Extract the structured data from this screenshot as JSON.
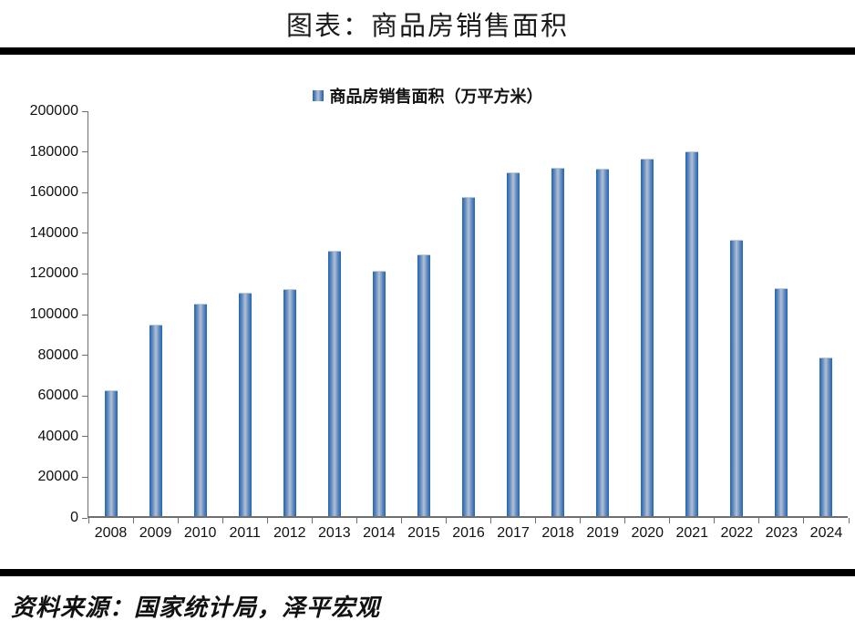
{
  "page": {
    "title": "图表：商品房销售面积",
    "source": "资料来源：国家统计局，泽平宏观"
  },
  "legend": {
    "label": "商品房销售面积（万平方米）",
    "swatch_color": "#4f81bd"
  },
  "colors": {
    "bar_edge": "#2a67b2",
    "bar_center": "#b0c1d6",
    "axis": "#6f6f6f",
    "divider": "#000000",
    "background": "#ffffff"
  },
  "chart_data": {
    "type": "bar",
    "title": "图表：商品房销售面积",
    "legend_entries": [
      "商品房销售面积（万平方米）"
    ],
    "legend_position": "top-center",
    "xlabel": "",
    "ylabel": "",
    "grid": false,
    "ylim": [
      0,
      200000
    ],
    "ytick_interval": 20000,
    "yticks": [
      0,
      20000,
      40000,
      60000,
      80000,
      100000,
      120000,
      140000,
      160000,
      180000,
      200000
    ],
    "categories": [
      "2008",
      "2009",
      "2010",
      "2011",
      "2012",
      "2013",
      "2014",
      "2015",
      "2016",
      "2017",
      "2018",
      "2019",
      "2020",
      "2021",
      "2022",
      "2023",
      "2024"
    ],
    "values": [
      62000,
      94000,
      104500,
      110000,
      111500,
      130500,
      120500,
      128500,
      157000,
      169000,
      171500,
      171000,
      176000,
      179500,
      136000,
      112000,
      78000
    ]
  }
}
